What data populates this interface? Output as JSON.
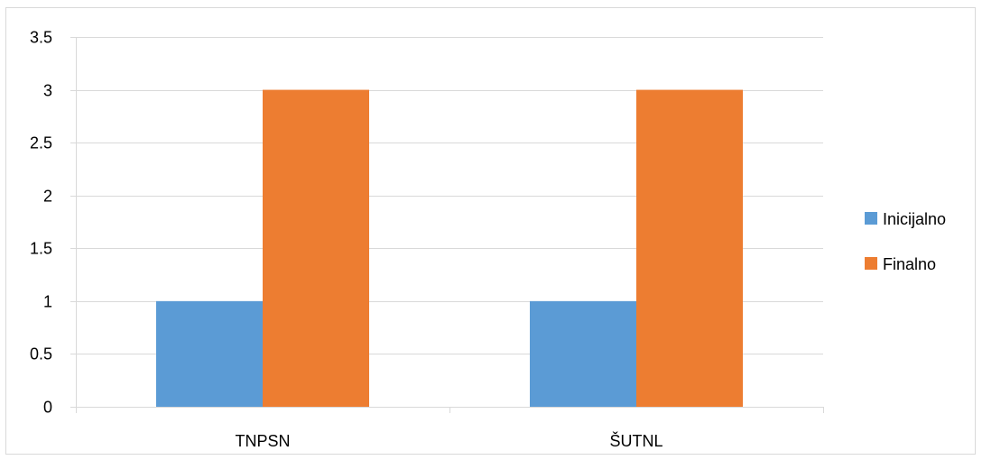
{
  "chart_data": {
    "type": "bar",
    "categories": [
      "TNPSN",
      "ŠUTNL"
    ],
    "series": [
      {
        "name": "Inicijalno",
        "values": [
          1,
          1
        ],
        "color": "#5b9bd5"
      },
      {
        "name": "Finalno",
        "values": [
          3,
          3
        ],
        "color": "#ed7d31"
      }
    ],
    "ylim": [
      0,
      3.5
    ],
    "yticks": [
      "0",
      "0.5",
      "1",
      "1.5",
      "2",
      "2.5",
      "3",
      "3.5"
    ],
    "grid": true,
    "legend_position": "right",
    "title": "",
    "xlabel": "",
    "ylabel": ""
  }
}
